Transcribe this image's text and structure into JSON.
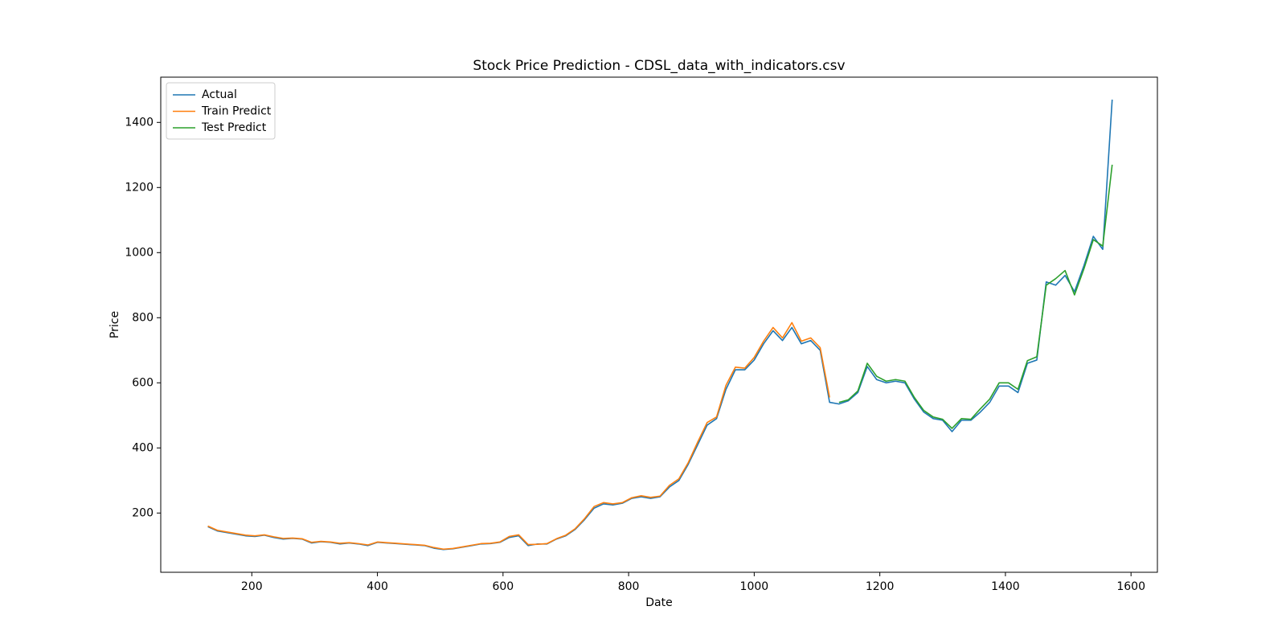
{
  "chart_data": {
    "type": "line",
    "title": "Stock Price Prediction - CDSL_data_with_indicators.csv",
    "x_label": "Date",
    "y_label": "Price",
    "x": [
      130,
      145,
      160,
      175,
      190,
      205,
      220,
      235,
      250,
      265,
      280,
      295,
      310,
      325,
      340,
      355,
      370,
      385,
      400,
      415,
      430,
      445,
      460,
      475,
      490,
      505,
      520,
      535,
      550,
      565,
      580,
      595,
      610,
      625,
      640,
      655,
      670,
      685,
      700,
      715,
      730,
      745,
      760,
      775,
      790,
      805,
      820,
      835,
      850,
      865,
      880,
      895,
      910,
      925,
      940,
      955,
      970,
      985,
      1000,
      1015,
      1030,
      1045,
      1060,
      1075,
      1090,
      1105,
      1120,
      1135,
      1150,
      1165,
      1180,
      1195,
      1210,
      1225,
      1240,
      1255,
      1270,
      1285,
      1300,
      1315,
      1330,
      1345,
      1360,
      1375,
      1390,
      1405,
      1420,
      1435,
      1450,
      1465,
      1480,
      1495,
      1510,
      1525,
      1540,
      1555,
      1570
    ],
    "series": [
      {
        "name": "Actual",
        "color": "#1f77b4",
        "values": [
          158,
          145,
          140,
          135,
          130,
          128,
          132,
          125,
          120,
          122,
          120,
          108,
          112,
          110,
          105,
          108,
          105,
          100,
          110,
          108,
          106,
          104,
          102,
          100,
          92,
          88,
          90,
          95,
          100,
          105,
          106,
          110,
          125,
          130,
          100,
          105,
          105,
          120,
          130,
          150,
          180,
          215,
          228,
          225,
          230,
          245,
          250,
          245,
          250,
          280,
          300,
          350,
          410,
          470,
          490,
          580,
          640,
          640,
          670,
          720,
          760,
          730,
          770,
          720,
          730,
          700,
          540,
          535,
          545,
          570,
          650,
          610,
          600,
          605,
          600,
          550,
          510,
          490,
          485,
          450,
          485,
          485,
          510,
          540,
          590,
          590,
          570,
          660,
          670,
          910,
          900,
          930,
          880,
          960,
          1050,
          1010,
          1470
        ]
      },
      {
        "name": "Train Predict",
        "color": "#ff7f0e",
        "values": [
          160,
          147,
          142,
          137,
          132,
          130,
          133,
          127,
          122,
          123,
          121,
          110,
          113,
          111,
          107,
          109,
          106,
          102,
          111,
          109,
          107,
          105,
          103,
          101,
          94,
          89,
          91,
          96,
          101,
          106,
          107,
          111,
          128,
          133,
          103,
          104,
          106,
          121,
          132,
          152,
          183,
          220,
          232,
          228,
          232,
          247,
          253,
          248,
          252,
          285,
          305,
          355,
          418,
          478,
          495,
          592,
          648,
          645,
          678,
          728,
          770,
          738,
          785,
          728,
          738,
          708,
          555,
          null,
          null,
          null,
          null,
          null,
          null,
          null,
          null,
          null,
          null,
          null,
          null,
          null,
          null,
          null,
          null,
          null,
          null,
          null,
          null,
          null,
          null,
          null,
          null,
          null,
          null,
          null,
          null,
          null,
          null
        ]
      },
      {
        "name": "Test Predict",
        "color": "#2ca02c",
        "values": [
          null,
          null,
          null,
          null,
          null,
          null,
          null,
          null,
          null,
          null,
          null,
          null,
          null,
          null,
          null,
          null,
          null,
          null,
          null,
          null,
          null,
          null,
          null,
          null,
          null,
          null,
          null,
          null,
          null,
          null,
          null,
          null,
          null,
          null,
          null,
          null,
          null,
          null,
          null,
          null,
          null,
          null,
          null,
          null,
          null,
          null,
          null,
          null,
          null,
          null,
          null,
          null,
          null,
          null,
          null,
          null,
          null,
          null,
          null,
          null,
          null,
          null,
          null,
          null,
          null,
          null,
          null,
          540,
          548,
          575,
          660,
          620,
          605,
          610,
          605,
          555,
          515,
          495,
          488,
          460,
          490,
          488,
          520,
          550,
          600,
          600,
          580,
          668,
          680,
          900,
          920,
          945,
          870,
          950,
          1040,
          1020,
          1270
        ]
      }
    ],
    "xlim": [
      55,
      1642
    ],
    "ylim": [
      18,
      1539
    ],
    "xticks": [
      200,
      400,
      600,
      800,
      1000,
      1200,
      1400,
      1600
    ],
    "yticks": [
      200,
      400,
      600,
      800,
      1000,
      1200,
      1400
    ],
    "legend": "upper left"
  }
}
